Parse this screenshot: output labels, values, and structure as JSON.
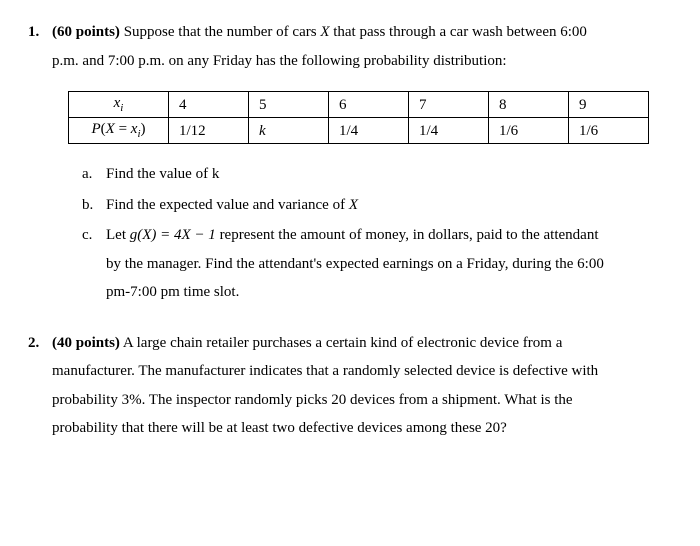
{
  "q1": {
    "number": "1.",
    "points": "(60 points)",
    "intro_a": "Suppose that the number of cars ",
    "intro_var": "X",
    "intro_b": " that pass through a car wash between 6:00",
    "intro_c": "p.m. and 7:00 p.m. on any Friday has the following probability distribution:",
    "table": {
      "row1": {
        "h": "xᵢ",
        "c1": "4",
        "c2": "5",
        "c3": "6",
        "c4": "7",
        "c5": "8",
        "c6": "9"
      },
      "row2": {
        "h": "P(X = xᵢ)",
        "c1": "1/12",
        "c2": "k",
        "c3": "1/4",
        "c4": "1/4",
        "c5": "1/6",
        "c6": "1/6"
      }
    },
    "a": {
      "l": "a.",
      "t": "Find the value of  k"
    },
    "b": {
      "l": "b.",
      "t1": "Find the expected value and variance of ",
      "var": "X"
    },
    "c": {
      "l": "c.",
      "t1": "Let ",
      "fn": "g(X)  =  4X − 1",
      "t2": " represent the amount of money, in dollars, paid to the attendant",
      "t3": "by the manager. Find the attendant's expected earnings on a Friday, during the 6:00",
      "t4": "pm-7:00 pm time slot."
    }
  },
  "q2": {
    "number": "2.",
    "points": "(40 points)",
    "l1": " A large chain retailer purchases a certain kind of electronic device from a",
    "l2": "manufacturer. The manufacturer indicates that a randomly selected device is defective with",
    "l3": "probability 3%.  The inspector randomly picks 20 devices from a shipment. What is the",
    "l4": "probability that there will be at least two defective devices among these 20?"
  }
}
